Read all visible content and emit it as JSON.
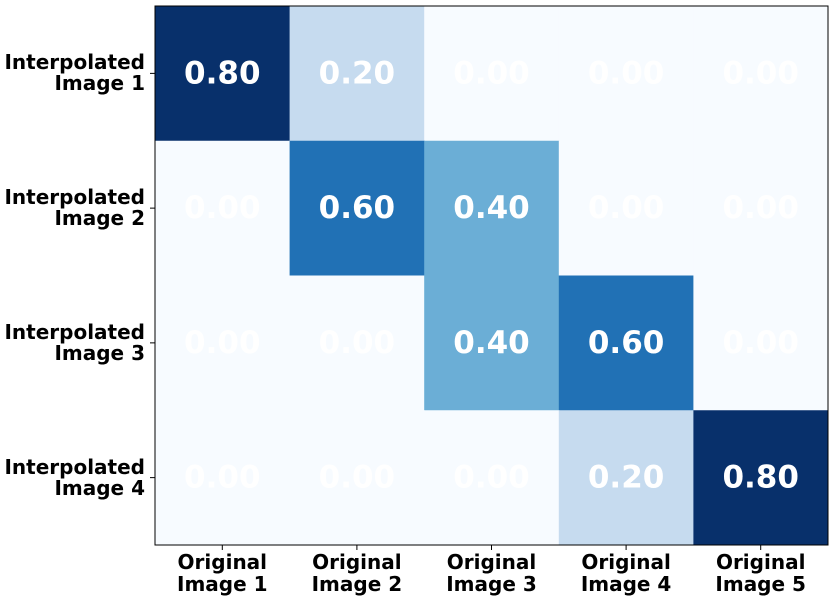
{
  "chart_data": {
    "type": "heatmap",
    "rows": [
      "Interpolated\nImage 1",
      "Interpolated\nImage 2",
      "Interpolated\nImage 3",
      "Interpolated\nImage 4"
    ],
    "columns": [
      "Original\nImage 1",
      "Original\nImage 2",
      "Original\nImage 3",
      "Original\nImage 4",
      "Original\nImage 5"
    ],
    "values": [
      [
        0.8,
        0.2,
        0,
        0,
        0
      ],
      [
        0,
        0.6,
        0.4,
        0,
        0
      ],
      [
        0,
        0,
        0.4,
        0.6,
        0
      ],
      [
        0,
        0,
        0,
        0.2,
        0.8
      ]
    ],
    "value_labels": [
      [
        "0.80",
        "0.20",
        "0.00",
        "0.00",
        "0.00"
      ],
      [
        "0.00",
        "0.60",
        "0.40",
        "0.00",
        "0.00"
      ],
      [
        "0.00",
        "0.00",
        "0.40",
        "0.60",
        "0.00"
      ],
      [
        "0.00",
        "0.00",
        "0.00",
        "0.20",
        "0.80"
      ]
    ],
    "colormap": "Blues",
    "vlim": [
      0,
      0.8
    ],
    "text_color": "#ffffff"
  }
}
